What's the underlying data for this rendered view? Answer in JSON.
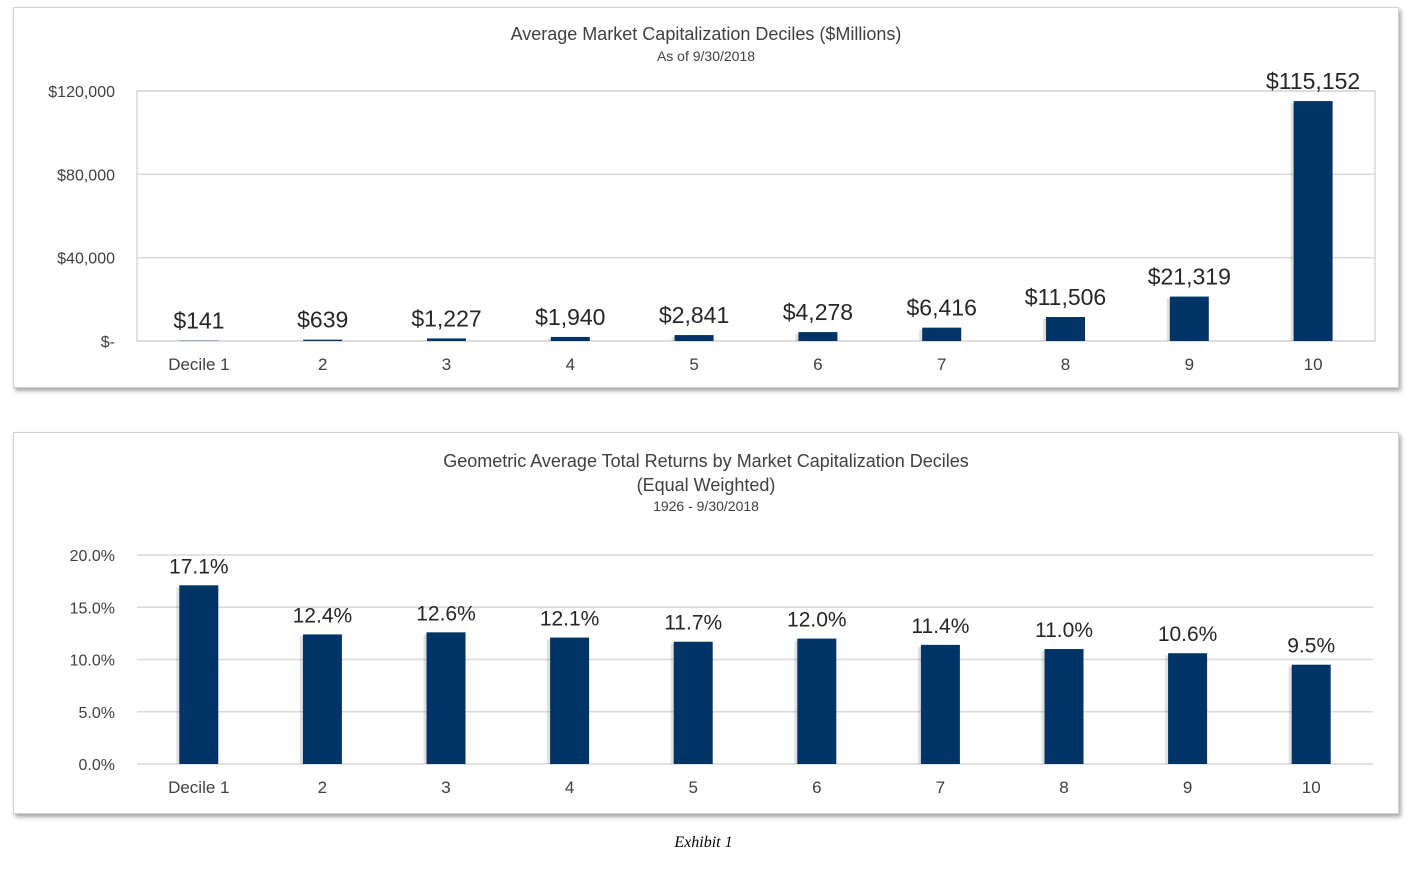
{
  "chart_data": [
    {
      "type": "bar",
      "title": "Average Market Capitalization Deciles ($Millions)",
      "subtitle": "As of 9/30/2018",
      "categories": [
        "Decile 1",
        "2",
        "3",
        "4",
        "5",
        "6",
        "7",
        "8",
        "9",
        "10"
      ],
      "values": [
        141,
        639,
        1227,
        1940,
        2841,
        4278,
        6416,
        11506,
        21319,
        115152
      ],
      "data_labels": [
        "$141",
        "$639",
        "$1,227",
        "$1,940",
        "$2,841",
        "$4,278",
        "$6,416",
        "$11,506",
        "$21,319",
        "$115,152"
      ],
      "yticks": [
        0,
        40000,
        80000,
        120000
      ],
      "ytick_labels": [
        "$-",
        "$40,000",
        "$80,000",
        "$120,000"
      ],
      "ylim": [
        0,
        120000
      ],
      "grid": true,
      "bar_color": "#003366"
    },
    {
      "type": "bar",
      "title": "Geometric Average Total Returns by Market Capitalization Deciles",
      "subtitle": "(Equal Weighted)",
      "subtitle2": "1926 - 9/30/2018",
      "categories": [
        "Decile 1",
        "2",
        "3",
        "4",
        "5",
        "6",
        "7",
        "8",
        "9",
        "10"
      ],
      "values": [
        17.1,
        12.4,
        12.6,
        12.1,
        11.7,
        12.0,
        11.4,
        11.0,
        10.6,
        9.5
      ],
      "data_labels": [
        "17.1%",
        "12.4%",
        "12.6%",
        "12.1%",
        "11.7%",
        "12.0%",
        "11.4%",
        "11.0%",
        "10.6%",
        "9.5%"
      ],
      "yticks": [
        0,
        5,
        10,
        15,
        20
      ],
      "ytick_labels": [
        "0.0%",
        "5.0%",
        "10.0%",
        "15.0%",
        "20.0%"
      ],
      "ylim": [
        0,
        20
      ],
      "grid": true,
      "bar_color": "#003366"
    }
  ],
  "caption": "Exhibit 1"
}
